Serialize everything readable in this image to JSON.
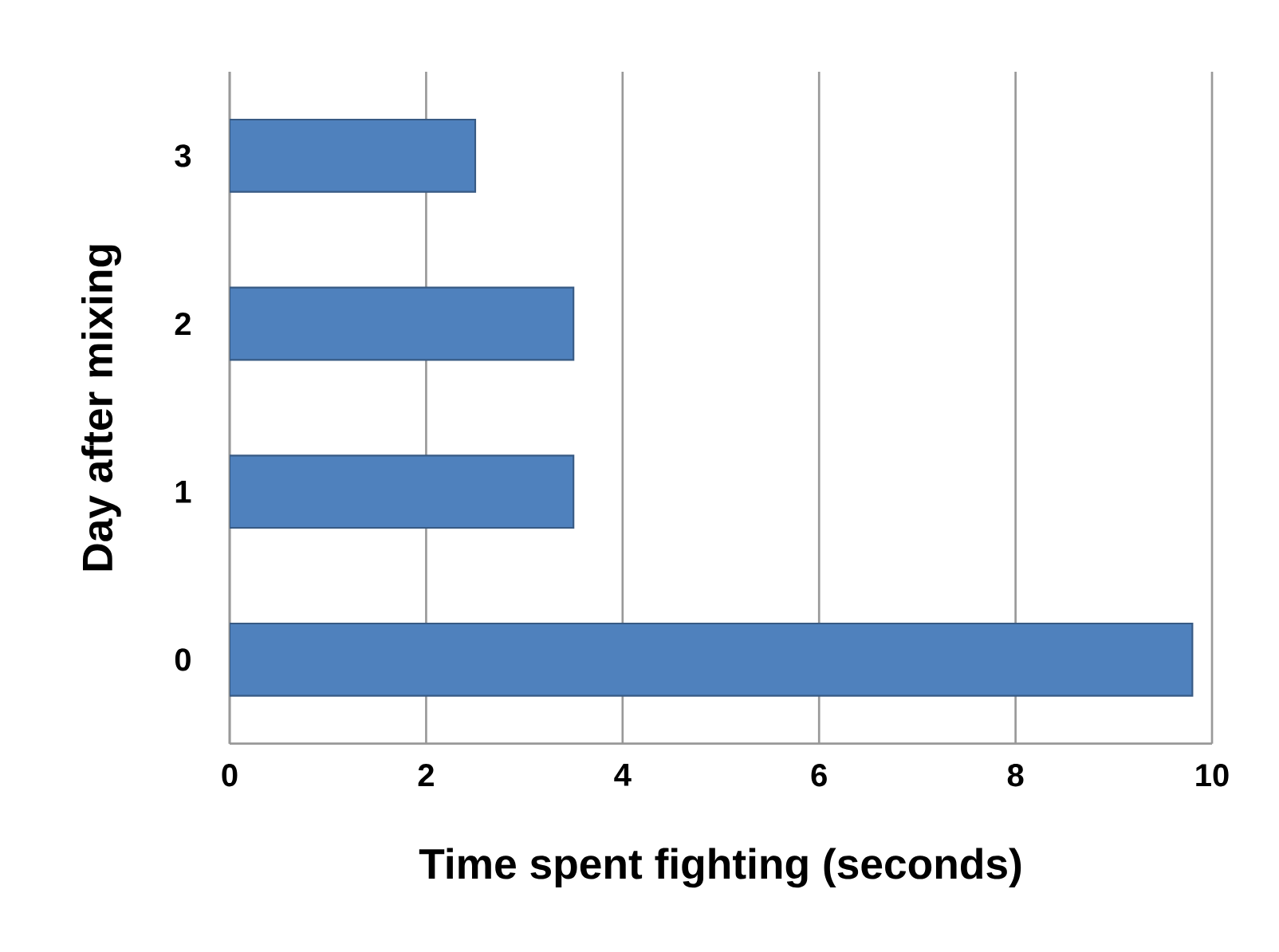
{
  "chart_data": {
    "type": "bar",
    "orientation": "horizontal",
    "xlabel": "Time spent fighting (seconds)",
    "ylabel": "Day after mixing",
    "categories": [
      "3",
      "2",
      "1",
      "0"
    ],
    "values": [
      2.5,
      3.5,
      3.5,
      9.8
    ],
    "color": "#4f81bd",
    "xlim": [
      0,
      10
    ],
    "xticks": [
      0,
      2,
      4,
      6,
      8,
      10
    ],
    "grid": "x"
  }
}
